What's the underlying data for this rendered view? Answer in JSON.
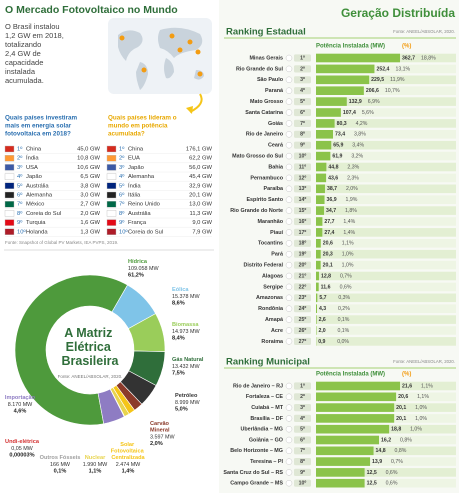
{
  "world": {
    "title": "O Mercado Fotovoltaico no Mundo",
    "intro_lines": [
      "O Brasil instalou",
      "1,2 GW em 2018,",
      "totalizando",
      "2,4 GW de",
      "capacidade",
      "instalada",
      "acumulada."
    ],
    "annual_question_lines": [
      "Quais países investiram",
      "mais em energia solar",
      "fotovoltaica em 2018?"
    ],
    "cumulative_question_lines": [
      "Quais países lideram o",
      "mundo em potência",
      "acumulada?"
    ],
    "annual_table": [
      [
        "1º",
        "China",
        "45,0 GW"
      ],
      [
        "2º",
        "Índia",
        "10,8 GW"
      ],
      [
        "3º",
        "USA",
        "10,6 GW"
      ],
      [
        "4º",
        "Japão",
        "6,5 GW"
      ],
      [
        "5º",
        "Austrália",
        "3,8 GW"
      ],
      [
        "6º",
        "Alemanha",
        "3,0 GW"
      ],
      [
        "7º",
        "México",
        "2,7 GW"
      ],
      [
        "8º",
        "Coreia do Sul",
        "2,0 GW"
      ],
      [
        "9º",
        "Turquia",
        "1,6 GW"
      ],
      [
        "10º",
        "Holanda",
        "1,3 GW"
      ]
    ],
    "cumulative_table": [
      [
        "1º",
        "China",
        "176,1 GW"
      ],
      [
        "2º",
        "EUA",
        "62,2 GW"
      ],
      [
        "3º",
        "Japão",
        "56,0 GW"
      ],
      [
        "4º",
        "Alemanha",
        "45,4 GW"
      ],
      [
        "5º",
        "Índia",
        "32,9 GW"
      ],
      [
        "6º",
        "Itália",
        "20,1 GW"
      ],
      [
        "7º",
        "Reino Unido",
        "13,0 GW"
      ],
      [
        "8º",
        "Austrália",
        "11,3 GW"
      ],
      [
        "9º",
        "França",
        "9,0 GW"
      ],
      [
        "10º",
        "Coreia do Sul",
        "7,9 GW"
      ]
    ],
    "source": "Fonte: Snapshot of Global PV Markets, IEA PVPS, 2019."
  },
  "right_title": "Geração Distribuída",
  "chart_data": [
    {
      "type": "donut",
      "title": "A Matriz Elétrica Brasileira",
      "source": "Fonte: ANEEL/ABSOLAR, 2020.",
      "categories": [
        "Hídrica",
        "Eólica",
        "Biomassa",
        "Gás Natural",
        "Petróleo",
        "Carvão Mineral",
        "Solar Fotovoltaica Centralizada",
        "Nuclear",
        "Outros Fósseis",
        "Undi-elétrica",
        "Importação"
      ],
      "values": [
        109058,
        15378,
        14973,
        13432,
        8999,
        3597,
        2474,
        1990,
        166,
        0.05,
        8170
      ],
      "value_labels": [
        "109.058 MW",
        "15.378 MW",
        "14.973 MW",
        "13.432 MW",
        "8.999 MW",
        "3.597 MW",
        "2.474 MW",
        "1.990 MW",
        "166 MW",
        "0,05 MW",
        "8.170 MW"
      ],
      "percents": [
        61.2,
        8.6,
        8.4,
        7.5,
        5.0,
        2.0,
        1.4,
        1.1,
        0.1,
        3e-05,
        4.6
      ],
      "percent_labels": [
        "61,2%",
        "8,6%",
        "8,4%",
        "7,5%",
        "5,0%",
        "2,0%",
        "1,4%",
        "1,1%",
        "0,1%",
        "0,00003%",
        "4,6%"
      ],
      "colors": [
        "#4e9a3c",
        "#7fc4e8",
        "#9acd5a",
        "#2f6e3a",
        "#333333",
        "#8b3a2a",
        "#f5c518",
        "#e8d44d",
        "#9e9e9e",
        "#d32f2f",
        "#8e7cc3"
      ]
    },
    {
      "type": "bar",
      "title": "Ranking Estadual",
      "source": "Fonte: ANEEL/ABSOLAR, 2020.",
      "value_header": "Potência Instalada (MW)",
      "percent_header": "(%)",
      "color": "#8bc34a",
      "categories": [
        "Minas Gerais",
        "Rio Grande do Sul",
        "São Paulo",
        "Paraná",
        "Mato Grosso",
        "Santa Catarina",
        "Goiás",
        "Rio de Janeiro",
        "Ceará",
        "Mato Grosso do Sul",
        "Bahia",
        "Pernambuco",
        "Paraíba",
        "Espírito Santo",
        "Rio Grande do Norte",
        "Maranhão",
        "Piauí",
        "Tocantins",
        "Pará",
        "Distrito Federal",
        "Alagoas",
        "Sergipe",
        "Amazonas",
        "Rondônia",
        "Amapá",
        "Acre",
        "Roraima"
      ],
      "ranks": [
        "1º",
        "2º",
        "3º",
        "4º",
        "5º",
        "6º",
        "7º",
        "8º",
        "9º",
        "10º",
        "11º",
        "12º",
        "13º",
        "14º",
        "15º",
        "16º",
        "17º",
        "18º",
        "19º",
        "20º",
        "21º",
        "22º",
        "23º",
        "24º",
        "25º",
        "26º",
        "27º"
      ],
      "values": [
        362.7,
        252.4,
        229.5,
        206.6,
        132.9,
        107.4,
        80.3,
        73.4,
        65.9,
        61.9,
        44.8,
        43.6,
        38.7,
        36.9,
        34.7,
        27.7,
        27.4,
        20.6,
        20.3,
        20.1,
        12.8,
        11.6,
        5.7,
        4.3,
        2.6,
        2.0,
        0.9
      ],
      "value_labels": [
        "362,7",
        "252,4",
        "229,5",
        "206,6",
        "132,9",
        "107,4",
        "80,3",
        "73,4",
        "65,9",
        "61,9",
        "44,8",
        "43,6",
        "38,7",
        "36,9",
        "34,7",
        "27,7",
        "27,4",
        "20,6",
        "20,3",
        "20,1",
        "12,8",
        "11,6",
        "5,7",
        "4,3",
        "2,6",
        "2,0",
        "0,9"
      ],
      "percents": [
        18.8,
        13.1,
        11.9,
        10.7,
        6.9,
        5.6,
        4.2,
        3.8,
        3.4,
        3.2,
        2.3,
        2.3,
        2.0,
        1.9,
        1.8,
        1.4,
        1.4,
        1.1,
        1.0,
        1.0,
        0.7,
        0.6,
        0.3,
        0.2,
        0.1,
        0.1,
        0.0
      ],
      "percent_labels": [
        "18,8%",
        "13,1%",
        "11,9%",
        "10,7%",
        "6,9%",
        "5,6%",
        "4,2%",
        "3,8%",
        "3,4%",
        "3,2%",
        "2,3%",
        "2,3%",
        "2,0%",
        "1,9%",
        "1,8%",
        "1,4%",
        "1,4%",
        "1,1%",
        "1,0%",
        "1,0%",
        "0,7%",
        "0,6%",
        "0,3%",
        "0,2%",
        "0,1%",
        "0,1%",
        "0,0%"
      ]
    },
    {
      "type": "bar",
      "title": "Ranking Municipal",
      "source": "Fonte: ANEEL/ABSOLAR, 2020.",
      "value_header": "Potência Instalada (MW)",
      "percent_header": "(%)",
      "color": "#8bc34a",
      "categories": [
        "Rio de Janeiro – RJ",
        "Fortaleza – CE",
        "Cuiabá – MT",
        "Brasília – DF",
        "Uberlândia – MG",
        "Goiânia – GO",
        "Belo Horizonte – MG",
        "Teresina – PI",
        "Santa Cruz do Sul – RS",
        "Campo Grande – MS"
      ],
      "ranks": [
        "1º",
        "2º",
        "3º",
        "4º",
        "5º",
        "6º",
        "7º",
        "8º",
        "9º",
        "10º"
      ],
      "values": [
        21.6,
        20.6,
        20.1,
        20.1,
        18.8,
        16.2,
        14.8,
        13.9,
        12.5,
        12.5
      ],
      "value_labels": [
        "21,6",
        "20,6",
        "20,1",
        "20,1",
        "18,8",
        "16,2",
        "14,8",
        "13,9",
        "12,5",
        "12,5"
      ],
      "percents": [
        1.1,
        1.1,
        1.0,
        1.0,
        1.0,
        0.8,
        0.8,
        0.7,
        0.6,
        0.6
      ],
      "percent_labels": [
        "1,1%",
        "1,1%",
        "1,0%",
        "1,0%",
        "1,0%",
        "0,8%",
        "0,8%",
        "0,7%",
        "0,6%",
        "0,6%"
      ]
    }
  ]
}
